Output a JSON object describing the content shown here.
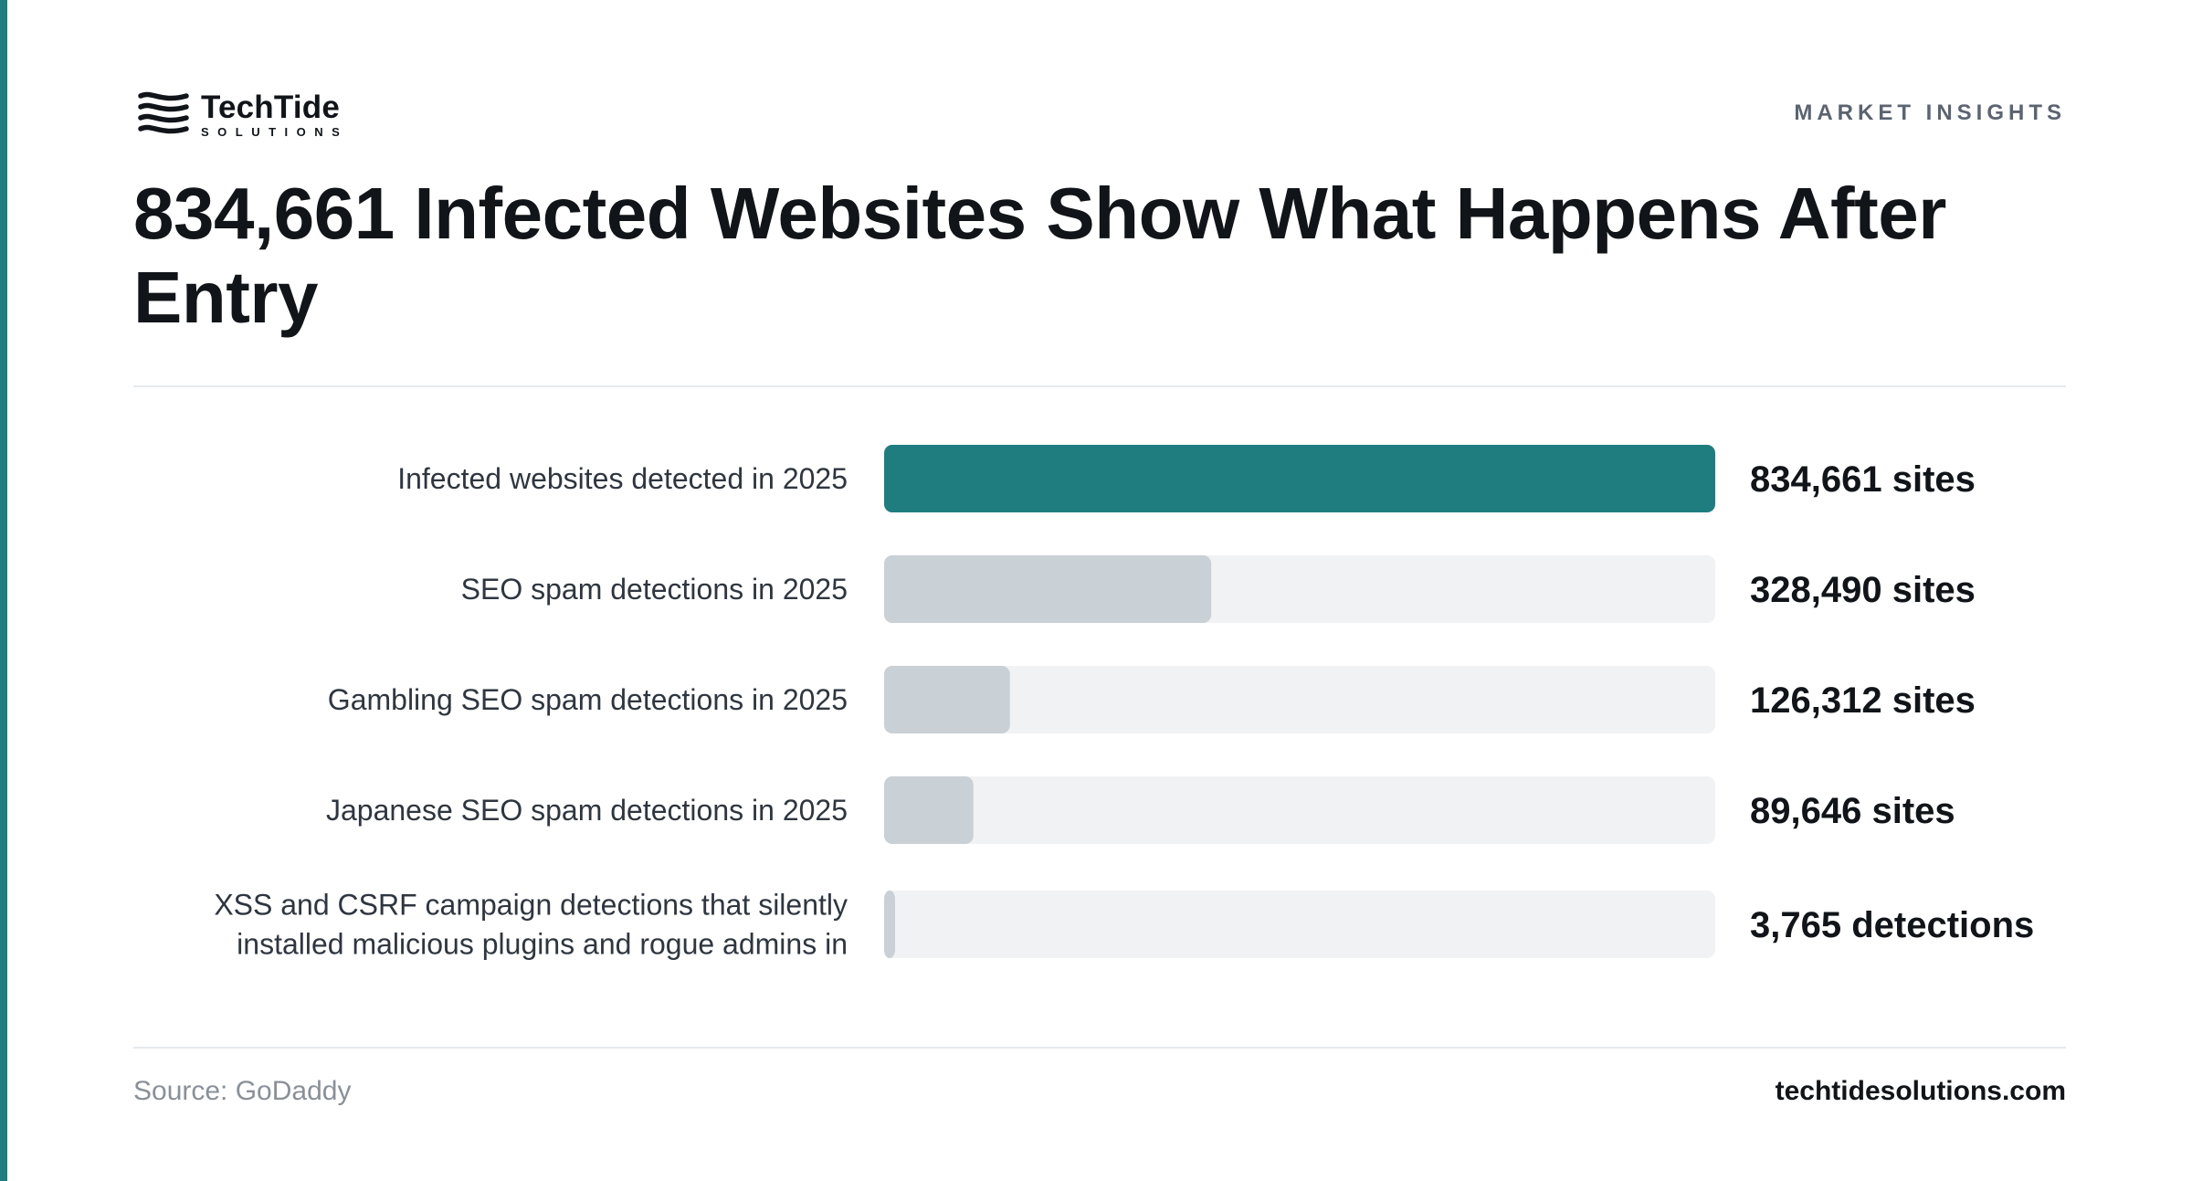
{
  "brand": {
    "name": "TechTide",
    "tagline": "SOLUTIONS",
    "icon": "wave-stripes-logo"
  },
  "eyebrow": "MARKET INSIGHTS",
  "title": "834,661 Infected Websites Show What Happens After Entry",
  "footer": {
    "source": "Source: GoDaddy",
    "website": "techtidesolutions.com"
  },
  "colors": {
    "accent": "#1f7d80",
    "bar_muted": "#c9d0d6",
    "track": "#f1f2f3"
  },
  "chart_data": {
    "type": "bar",
    "orientation": "horizontal",
    "categories": [
      "Infected websites detected in 2025",
      "SEO spam detections in 2025",
      "Gambling SEO spam detections in 2025",
      "Japanese SEO spam detections in 2025",
      "XSS and CSRF campaign detections that silently installed malicious plugins and rogue admins in"
    ],
    "values": [
      834661,
      328490,
      126312,
      89646,
      3765
    ],
    "value_labels": [
      "834,661 sites",
      "328,490 sites",
      "126,312 sites",
      "89,646 sites",
      "3,765 detections"
    ],
    "highlight_index": 0,
    "xlim": [
      0,
      834661
    ],
    "title": "",
    "xlabel": "",
    "ylabel": "",
    "grid": false
  }
}
